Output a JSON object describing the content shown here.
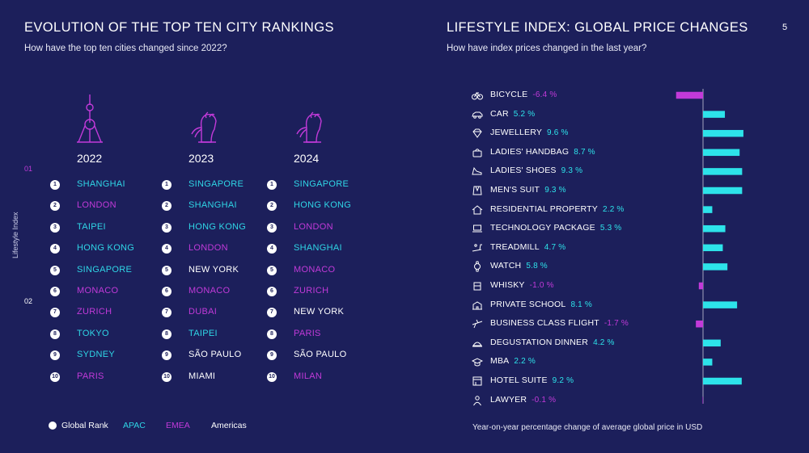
{
  "page_number": "5",
  "left": {
    "title": "EVOLUTION OF THE TOP TEN CITY RANKINGS",
    "subtitle": "How have the top ten cities changed since 2022?",
    "y_axis_label": "Lifestyle Index",
    "tier_labels": [
      "01",
      "02"
    ],
    "colors": {
      "APAC": "#2fd6e6",
      "EMEA": "#c23ad9",
      "Americas": "#ffffff"
    },
    "columns": [
      {
        "year": "2022",
        "icon": "shanghai-tower-icon",
        "cities": [
          {
            "rank": "1",
            "name": "SHANGHAI",
            "region": "APAC"
          },
          {
            "rank": "2",
            "name": "LONDON",
            "region": "EMEA"
          },
          {
            "rank": "3",
            "name": "TAIPEI",
            "region": "APAC"
          },
          {
            "rank": "4",
            "name": "HONG KONG",
            "region": "APAC"
          },
          {
            "rank": "5",
            "name": "SINGAPORE",
            "region": "APAC"
          },
          {
            "rank": "6",
            "name": "MONACO",
            "region": "EMEA"
          },
          {
            "rank": "7",
            "name": "ZURICH",
            "region": "EMEA"
          },
          {
            "rank": "8",
            "name": "TOKYO",
            "region": "APAC"
          },
          {
            "rank": "9",
            "name": "SYDNEY",
            "region": "APAC"
          },
          {
            "rank": "10",
            "name": "PARIS",
            "region": "EMEA"
          }
        ]
      },
      {
        "year": "2023",
        "icon": "merlion-icon",
        "cities": [
          {
            "rank": "1",
            "name": "SINGAPORE",
            "region": "APAC"
          },
          {
            "rank": "2",
            "name": "SHANGHAI",
            "region": "APAC"
          },
          {
            "rank": "3",
            "name": "HONG KONG",
            "region": "APAC"
          },
          {
            "rank": "4",
            "name": "LONDON",
            "region": "EMEA"
          },
          {
            "rank": "5",
            "name": "NEW YORK",
            "region": "Americas"
          },
          {
            "rank": "6",
            "name": "MONACO",
            "region": "EMEA"
          },
          {
            "rank": "7",
            "name": "DUBAI",
            "region": "EMEA"
          },
          {
            "rank": "8",
            "name": "TAIPEI",
            "region": "APAC"
          },
          {
            "rank": "9",
            "name": "SÃO PAULO",
            "region": "Americas"
          },
          {
            "rank": "10",
            "name": "MIAMI",
            "region": "Americas"
          }
        ]
      },
      {
        "year": "2024",
        "icon": "merlion-icon",
        "cities": [
          {
            "rank": "1",
            "name": "SINGAPORE",
            "region": "APAC"
          },
          {
            "rank": "2",
            "name": "HONG KONG",
            "region": "APAC"
          },
          {
            "rank": "3",
            "name": "LONDON",
            "region": "EMEA"
          },
          {
            "rank": "4",
            "name": "SHANGHAI",
            "region": "APAC"
          },
          {
            "rank": "5",
            "name": "MONACO",
            "region": "EMEA"
          },
          {
            "rank": "6",
            "name": "ZURICH",
            "region": "EMEA"
          },
          {
            "rank": "7",
            "name": "NEW YORK",
            "region": "Americas"
          },
          {
            "rank": "8",
            "name": "PARIS",
            "region": "EMEA"
          },
          {
            "rank": "9",
            "name": "SÃO PAULO",
            "region": "Americas"
          },
          {
            "rank": "10",
            "name": "MILAN",
            "region": "EMEA"
          }
        ]
      }
    ],
    "legend": {
      "global_rank": "Global Rank",
      "apac": "APAC",
      "emea": "EMEA",
      "americas": "Americas"
    }
  },
  "right": {
    "title": "LIFESTYLE INDEX: GLOBAL PRICE CHANGES",
    "subtitle": "How have index prices changed in the last year?",
    "note": "Year-on-year percentage change of average global price in USD",
    "colors": {
      "positive": "#2de3ea",
      "negative": "#c23ad9"
    }
  },
  "chart_data": {
    "type": "bar",
    "orientation": "horizontal",
    "unit": "%",
    "categories": [
      "BICYCLE",
      "CAR",
      "JEWELLERY",
      "LADIES' HANDBAG",
      "LADIES' SHOES",
      "MEN'S SUIT",
      "RESIDENTIAL PROPERTY",
      "TECHNOLOGY PACKAGE",
      "TREADMILL",
      "WATCH",
      "WHISKY",
      "PRIVATE SCHOOL",
      "BUSINESS CLASS FLIGHT",
      "DEGUSTATION DINNER",
      "MBA",
      "HOTEL SUITE",
      "LAWYER"
    ],
    "values": [
      -6.4,
      5.2,
      9.6,
      8.7,
      9.3,
      9.3,
      2.2,
      5.3,
      4.7,
      5.8,
      -1.0,
      8.1,
      -1.7,
      4.2,
      2.2,
      9.2,
      -0.1
    ],
    "value_labels": [
      "-6.4 %",
      "5.2 %",
      "9.6 %",
      "8.7 %",
      "9.3 %",
      "9.3 %",
      "2.2 %",
      "5.3 %",
      "4.7 %",
      "5.8 %",
      "-1.0 %",
      "8.1 %",
      "-1.7 %",
      "4.2 %",
      "2.2 %",
      "9.2 %",
      "-0.1 %"
    ],
    "icons": [
      "bicycle-icon",
      "car-icon",
      "diamond-icon",
      "handbag-icon",
      "shoe-icon",
      "suit-icon",
      "house-icon",
      "laptop-icon",
      "treadmill-icon",
      "watch-icon",
      "whisky-icon",
      "school-icon",
      "airplane-icon",
      "dinner-icon",
      "graduation-cap-icon",
      "hotel-icon",
      "lawyer-icon"
    ]
  }
}
